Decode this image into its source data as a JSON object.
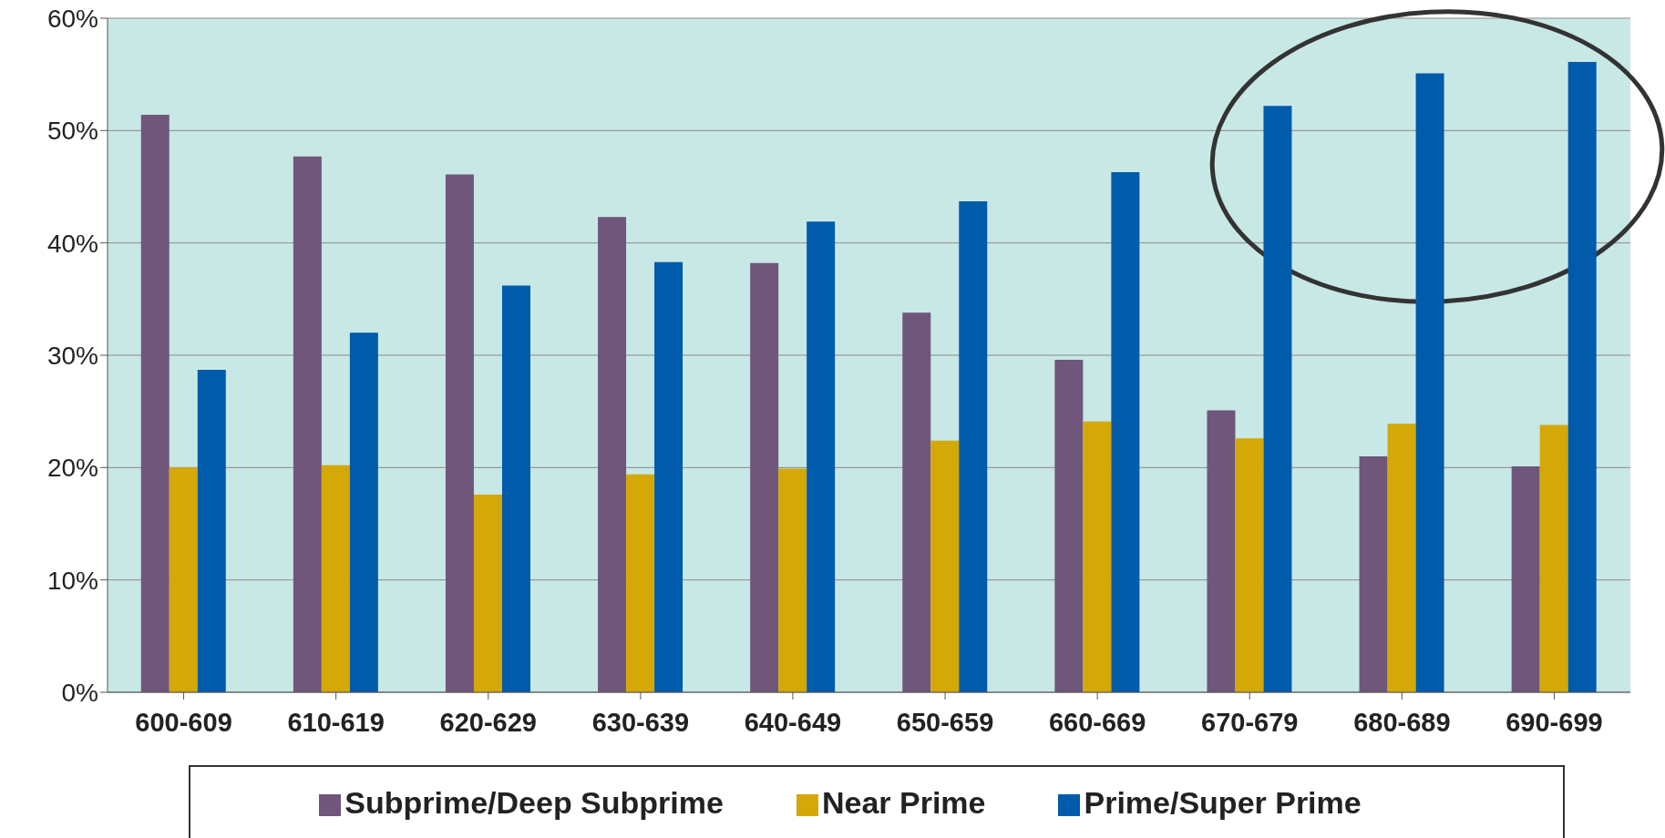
{
  "chart_data": {
    "type": "bar",
    "categories": [
      "600-609",
      "610-619",
      "620-629",
      "630-639",
      "640-649",
      "650-659",
      "660-669",
      "670-679",
      "680-689",
      "690-699"
    ],
    "series": [
      {
        "name": "Subprime/Deep Subprime",
        "color": "#6f567a",
        "values": [
          51.4,
          47.7,
          46.1,
          42.3,
          38.2,
          33.8,
          29.6,
          25.1,
          21.0,
          20.1
        ]
      },
      {
        "name": "Near Prime",
        "color": "#d4a807",
        "values": [
          20.0,
          20.2,
          17.6,
          19.4,
          19.9,
          22.4,
          24.1,
          22.6,
          23.9,
          23.8
        ]
      },
      {
        "name": "Prime/Super Prime",
        "color": "#005bab",
        "values": [
          28.7,
          32.0,
          36.2,
          38.3,
          41.9,
          43.7,
          46.3,
          52.2,
          55.1,
          56.1
        ]
      }
    ],
    "ylim": [
      0,
      60
    ],
    "yticks": [
      {
        "value": 0,
        "label": "0%"
      },
      {
        "value": 10,
        "label": "10%"
      },
      {
        "value": 20,
        "label": "20%"
      },
      {
        "value": 30,
        "label": "30%"
      },
      {
        "value": 40,
        "label": "40%"
      },
      {
        "value": 50,
        "label": "50%"
      },
      {
        "value": 60,
        "label": "60%"
      }
    ],
    "grid": "y",
    "legend": "bottom"
  }
}
